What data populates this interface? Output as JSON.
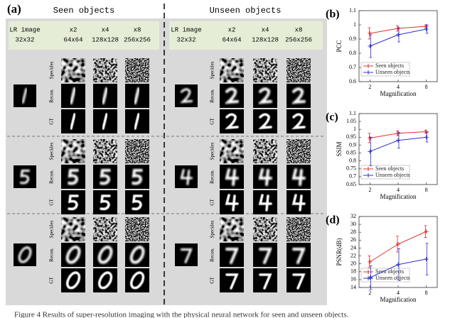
{
  "panel_a": {
    "label": "(a)",
    "groups": [
      "Seen objects",
      "Unseen objects"
    ],
    "columns": [
      {
        "line1": "LR image",
        "line2": "32x32"
      },
      {
        "line1": "x2",
        "line2": "64x64"
      },
      {
        "line1": "x4",
        "line2": "128x128"
      },
      {
        "line1": "x8",
        "line2": "256x256"
      }
    ],
    "rows": [
      "Speckles",
      "Recon.",
      "GT"
    ]
  },
  "chart_data": [
    {
      "type": "line",
      "title": "(b)",
      "ylabel": "PCC",
      "xlabel": "Magnification",
      "categories": [
        "2",
        "4",
        "8"
      ],
      "ylim": [
        0.6,
        1.1
      ],
      "yticks": [
        0.6,
        0.7,
        0.8,
        0.9,
        1,
        1.1
      ],
      "series": [
        {
          "name": "Seen objects",
          "color": "#e0302f",
          "values": [
            0.94,
            0.975,
            0.99
          ],
          "errors": [
            0.04,
            0.02,
            0.01
          ]
        },
        {
          "name": "Unseen objects",
          "color": "#2f2fd0",
          "values": [
            0.85,
            0.93,
            0.97
          ],
          "errors": [
            0.08,
            0.05,
            0.03
          ]
        }
      ]
    },
    {
      "type": "line",
      "title": "(c)",
      "ylabel": "SSIM",
      "xlabel": "Magnification",
      "categories": [
        "2",
        "4",
        "8"
      ],
      "ylim": [
        0.65,
        1.1
      ],
      "yticks": [
        0.65,
        0.7,
        0.75,
        0.8,
        0.85,
        0.9,
        0.95,
        1,
        1.05,
        1.1
      ],
      "series": [
        {
          "name": "Seen objects",
          "color": "#e0302f",
          "values": [
            0.945,
            0.975,
            0.985
          ],
          "errors": [
            0.03,
            0.015,
            0.01
          ]
        },
        {
          "name": "Unseen objects",
          "color": "#2f2fd0",
          "values": [
            0.86,
            0.93,
            0.95
          ],
          "errors": [
            0.09,
            0.05,
            0.03
          ]
        }
      ]
    },
    {
      "type": "line",
      "title": "(d)",
      "ylabel": "PSNR(dB)",
      "xlabel": "Magnification",
      "categories": [
        "2",
        "4",
        "8"
      ],
      "ylim": [
        14,
        32
      ],
      "yticks": [
        14,
        16,
        18,
        20,
        22,
        24,
        26,
        28,
        30,
        32
      ],
      "series": [
        {
          "name": "Seen objects",
          "color": "#e0302f",
          "values": [
            20.5,
            25,
            28.2
          ],
          "errors": [
            1.5,
            2,
            1.5
          ]
        },
        {
          "name": "Unseen objects",
          "color": "#2f2fd0",
          "values": [
            16.5,
            19.8,
            21.2
          ],
          "errors": [
            3,
            4,
            4
          ]
        }
      ]
    }
  ],
  "caption": "Figure 4 Results of super-resolution imaging with the physical neural network for seen and unseen objects."
}
